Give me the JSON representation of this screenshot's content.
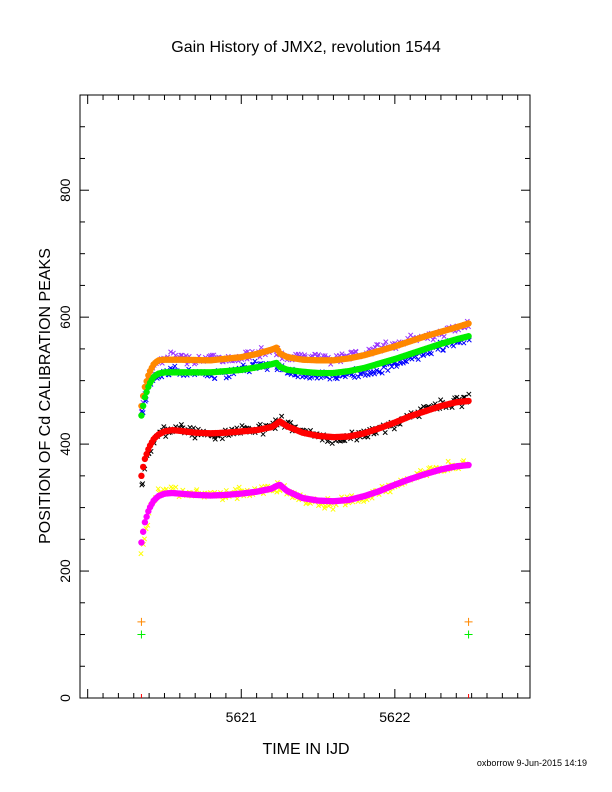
{
  "chart_data": {
    "type": "scatter",
    "title": "Gain History of JMX2, revolution 1544",
    "xlabel": "TIME IN IJD",
    "ylabel": "POSITION OF Cd CALIBRATION PEAKS",
    "xlim": [
      5619.95,
      5622.88
    ],
    "ylim": [
      0,
      950
    ],
    "x_ticks": [
      5621,
      5622
    ],
    "y_ticks": [
      0,
      200,
      400,
      600,
      800
    ],
    "grid": false,
    "legend": "none",
    "footer": "oxborrow  9-Jun-2015 14:19",
    "series": [
      {
        "color": "#9933ff",
        "marker": "x",
        "kind": "measured",
        "scatter": 11,
        "x": [
          5620.35,
          5620.4,
          5620.45,
          5620.55,
          5620.7,
          5620.85,
          5621.0,
          5621.15,
          5621.22,
          5621.25,
          5621.4,
          5621.6,
          5621.8,
          5622.0,
          5622.2,
          5622.4,
          5622.48
        ],
        "y": [
          455,
          510,
          530,
          538,
          535,
          533,
          538,
          545,
          552,
          538,
          540,
          535,
          545,
          558,
          570,
          583,
          588
        ]
      },
      {
        "color": "#0000ff",
        "marker": "x",
        "kind": "measured",
        "scatter": 11,
        "x": [
          5620.35,
          5620.4,
          5620.45,
          5620.55,
          5620.7,
          5620.85,
          5621.0,
          5621.15,
          5621.22,
          5621.25,
          5621.4,
          5621.6,
          5621.8,
          5622.0,
          5622.2,
          5622.4,
          5622.48
        ],
        "y": [
          445,
          490,
          508,
          515,
          512,
          510,
          518,
          525,
          530,
          518,
          510,
          508,
          512,
          525,
          545,
          560,
          568
        ]
      },
      {
        "color": "#000000",
        "marker": "x",
        "kind": "measured",
        "scatter": 13,
        "x": [
          5620.35,
          5620.4,
          5620.45,
          5620.55,
          5620.7,
          5620.85,
          5621.0,
          5621.15,
          5621.22,
          5621.25,
          5621.4,
          5621.6,
          5621.8,
          5622.0,
          5622.2,
          5622.4,
          5622.48
        ],
        "y": [
          330,
          390,
          415,
          425,
          420,
          415,
          422,
          425,
          430,
          438,
          418,
          405,
          415,
          432,
          455,
          468,
          470
        ]
      },
      {
        "color": "#ffff00",
        "marker": "x",
        "kind": "measured",
        "scatter": 12,
        "x": [
          5620.35,
          5620.4,
          5620.45,
          5620.55,
          5620.7,
          5620.85,
          5621.0,
          5621.15,
          5621.22,
          5621.25,
          5621.4,
          5621.6,
          5621.8,
          5622.0,
          5622.2,
          5622.4,
          5622.48
        ],
        "y": [
          225,
          295,
          320,
          328,
          322,
          318,
          322,
          328,
          332,
          335,
          312,
          305,
          315,
          335,
          355,
          365,
          368
        ]
      },
      {
        "color": "#ff8800",
        "marker": "o",
        "kind": "fit",
        "x": [
          5620.35,
          5620.37,
          5620.4,
          5620.43,
          5620.46,
          5620.5,
          5620.6,
          5620.8,
          5621.0,
          5621.1,
          5621.2,
          5621.23,
          5621.25,
          5621.3,
          5621.4,
          5621.5,
          5621.6,
          5621.7,
          5621.8,
          5621.9,
          5622.0,
          5622.1,
          5622.2,
          5622.3,
          5622.4,
          5622.48
        ],
        "y": [
          460,
          488,
          512,
          526,
          532,
          533,
          533,
          532,
          537,
          542,
          549,
          552,
          543,
          537,
          533,
          532,
          532,
          535,
          540,
          547,
          554,
          562,
          570,
          577,
          584,
          590
        ]
      },
      {
        "color": "#00ee00",
        "marker": "o",
        "kind": "fit",
        "x": [
          5620.35,
          5620.37,
          5620.4,
          5620.43,
          5620.46,
          5620.5,
          5620.6,
          5620.8,
          5621.0,
          5621.1,
          5621.2,
          5621.23,
          5621.25,
          5621.3,
          5621.4,
          5621.5,
          5621.6,
          5621.7,
          5621.8,
          5621.9,
          5622.0,
          5622.1,
          5622.2,
          5622.3,
          5622.4,
          5622.48
        ],
        "y": [
          445,
          472,
          494,
          506,
          511,
          513,
          513,
          513,
          517,
          521,
          526,
          528,
          522,
          517,
          514,
          512,
          512,
          515,
          520,
          527,
          534,
          542,
          550,
          558,
          565,
          570
        ]
      },
      {
        "color": "#ff0000",
        "marker": "o",
        "kind": "fit",
        "x": [
          5620.35,
          5620.37,
          5620.4,
          5620.43,
          5620.46,
          5620.5,
          5620.55,
          5620.6,
          5620.7,
          5620.8,
          5620.9,
          5621.0,
          5621.1,
          5621.2,
          5621.23,
          5621.25,
          5621.3,
          5621.4,
          5621.5,
          5621.6,
          5621.7,
          5621.8,
          5621.9,
          5622.0,
          5622.1,
          5622.2,
          5622.3,
          5622.4,
          5622.48
        ],
        "y": [
          350,
          375,
          395,
          408,
          415,
          420,
          422,
          421,
          418,
          417,
          418,
          420,
          422,
          427,
          432,
          436,
          428,
          418,
          413,
          411,
          412,
          417,
          425,
          434,
          444,
          452,
          460,
          466,
          468
        ]
      },
      {
        "color": "#ff00ff",
        "marker": "o",
        "kind": "fit",
        "x": [
          5620.35,
          5620.37,
          5620.4,
          5620.43,
          5620.46,
          5620.5,
          5620.55,
          5620.6,
          5620.7,
          5620.8,
          5620.9,
          5621.0,
          5621.1,
          5621.2,
          5621.22,
          5621.25,
          5621.3,
          5621.4,
          5621.5,
          5621.6,
          5621.7,
          5621.8,
          5621.9,
          5622.0,
          5622.1,
          5622.2,
          5622.3,
          5622.4,
          5622.48
        ],
        "y": [
          245,
          275,
          298,
          311,
          318,
          322,
          323,
          322,
          320,
          319,
          320,
          322,
          325,
          330,
          333,
          336,
          326,
          315,
          311,
          310,
          312,
          318,
          326,
          336,
          345,
          353,
          360,
          365,
          367
        ]
      },
      {
        "color": "#ff8800",
        "marker": "+",
        "kind": "reference",
        "x": [
          5620.35,
          5622.48
        ],
        "y": [
          120,
          120
        ]
      },
      {
        "color": "#00ee00",
        "marker": "+",
        "kind": "reference",
        "x": [
          5620.35,
          5622.48
        ],
        "y": [
          100,
          100
        ]
      },
      {
        "color": "#ff0000",
        "marker": "+",
        "kind": "reference",
        "x": [
          5620.35,
          5622.48
        ],
        "y": [
          0,
          0
        ]
      }
    ]
  }
}
